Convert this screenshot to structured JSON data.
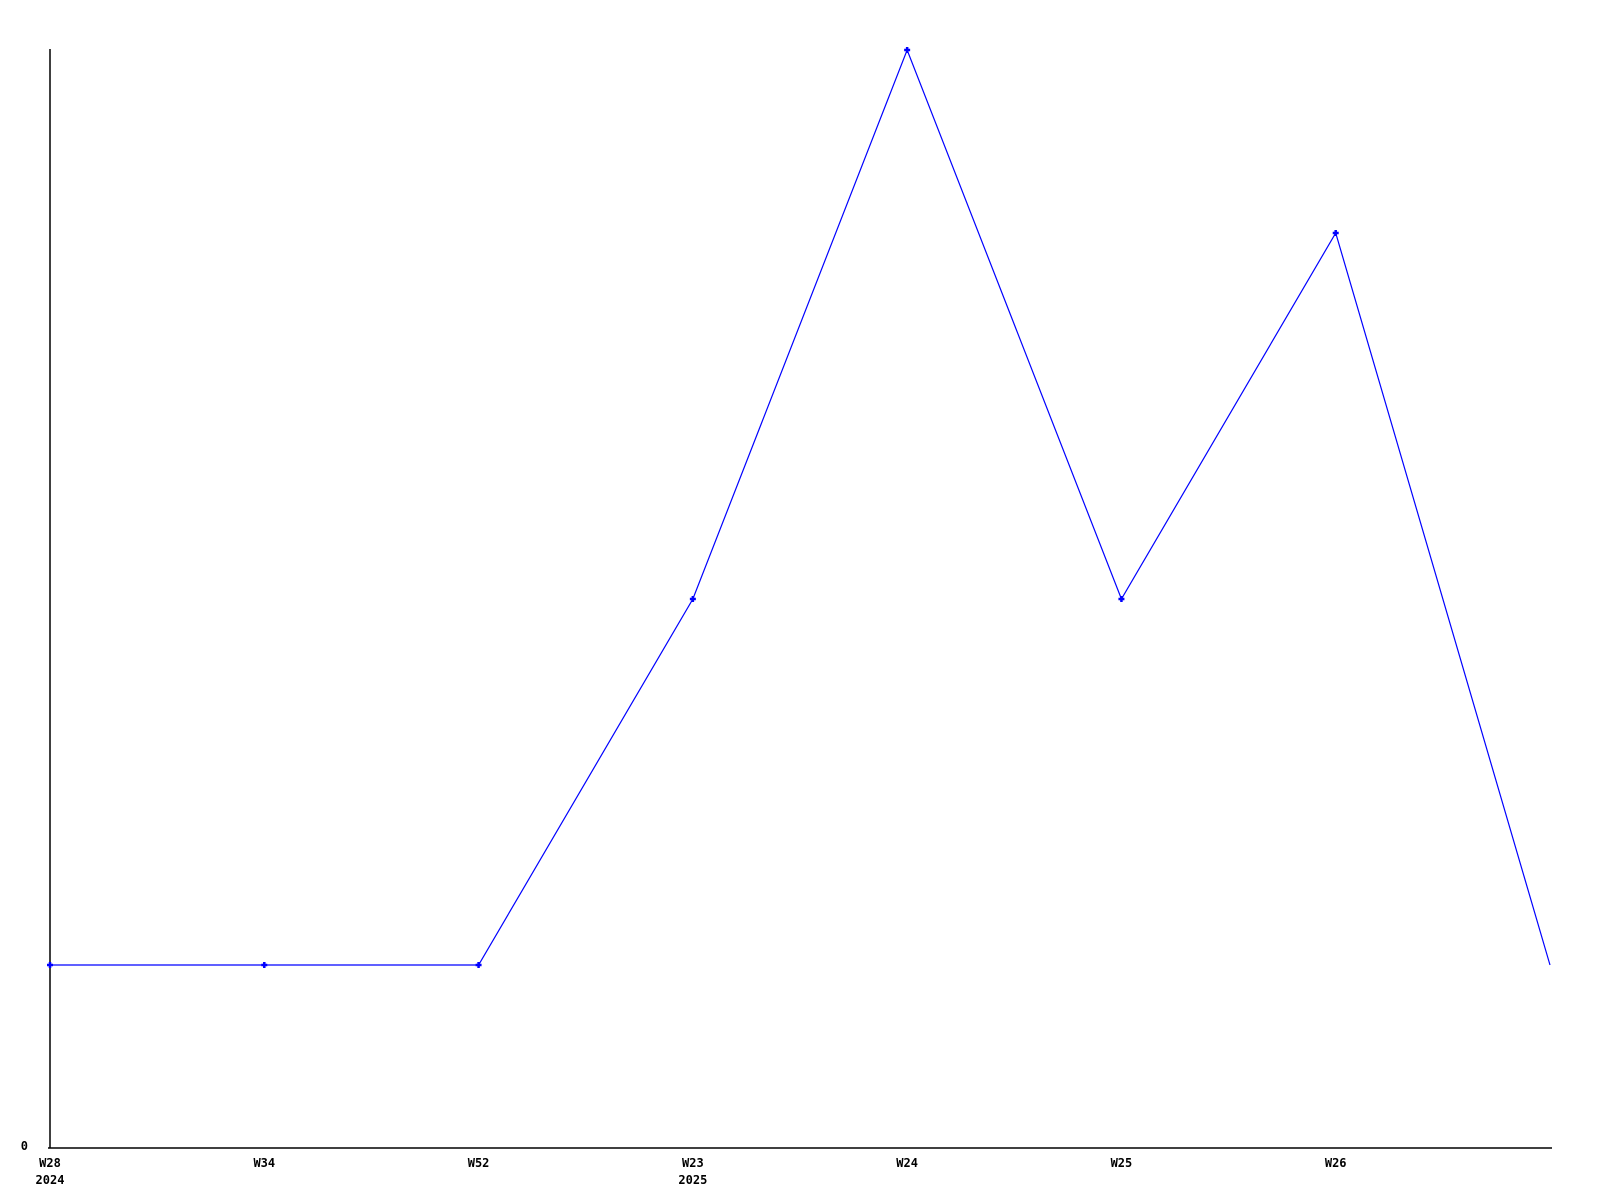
{
  "chart_data": {
    "type": "line",
    "title": "",
    "xlabel": "",
    "ylabel": "",
    "categories": [
      "W28",
      "W34",
      "W52",
      "W23",
      "W24",
      "W25",
      "W26",
      ""
    ],
    "category_year_labels": {
      "0": "2024",
      "3": "2025"
    },
    "values": [
      1,
      1,
      1,
      3,
      6,
      3,
      5,
      1
    ],
    "ylim": [
      0,
      6
    ],
    "y_axis_tick_labels": [
      "0"
    ],
    "grid": false,
    "legend_position": "none",
    "line_color": "#0000ff",
    "axis_color": "#000000",
    "text_color": "#000000",
    "background_color": "#ffffff",
    "marker_shape": "plus",
    "markers_on_points": [
      true,
      true,
      true,
      true,
      true,
      true,
      true,
      false
    ]
  }
}
